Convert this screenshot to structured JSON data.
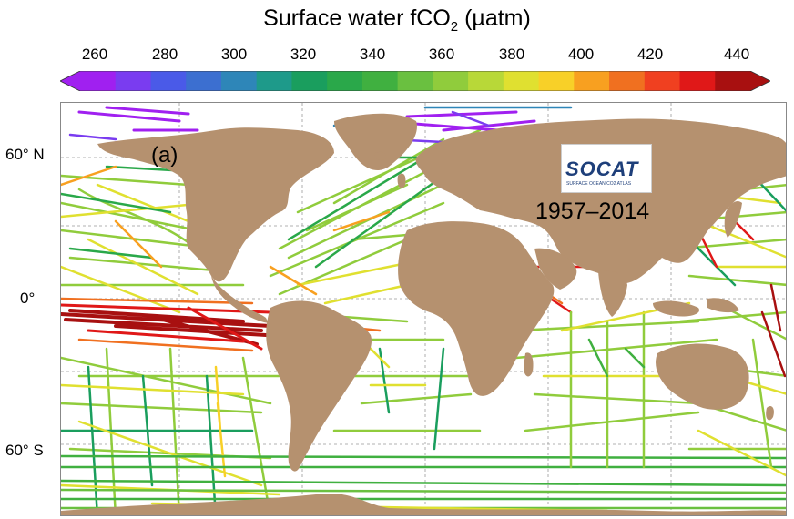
{
  "figure": {
    "title_main": "Surface water fCO",
    "title_sub": "2",
    "title_tail": " (µatm)",
    "panel_label": "(a)",
    "years": "1957–2014",
    "logo": {
      "name": "SOCAT",
      "subtitle": "SURFACE OCEAN CO2 ATLAS"
    }
  },
  "colorbar": {
    "ticks": [
      "260",
      "280",
      "300",
      "320",
      "340",
      "360",
      "380",
      "400",
      "420",
      "440"
    ],
    "min": 250,
    "max": 450,
    "colors": [
      "#a020f0",
      "#7a3cf0",
      "#4a5ae8",
      "#3c6fd0",
      "#2e86b8",
      "#1e9a8a",
      "#1a9e5e",
      "#2aa84a",
      "#40b040",
      "#6ac040",
      "#90cc3c",
      "#b8d838",
      "#e0e030",
      "#f8d028",
      "#f8a020",
      "#f07020",
      "#f04020",
      "#e01818",
      "#a81010"
    ]
  },
  "axes": {
    "lat_labels": [
      "60° N",
      "0°",
      "60° S"
    ]
  },
  "colors": {
    "land": "#b5916f",
    "ocean": "#ffffff",
    "grid": "#999999"
  }
}
